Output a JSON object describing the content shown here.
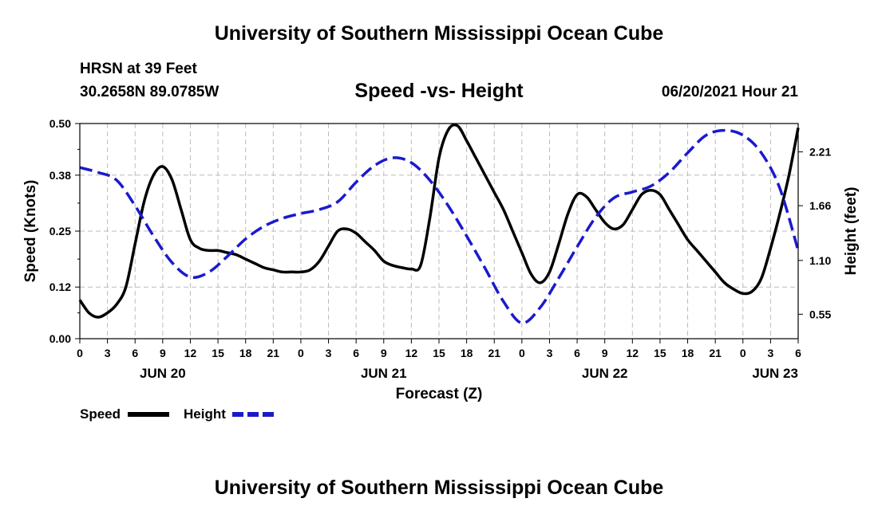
{
  "header": {
    "title": "University of Southern Mississippi Ocean Cube",
    "station": "HRSN at 39 Feet",
    "coordinates": "30.2658N  89.0785W",
    "subtitle": "Speed -vs- Height",
    "datetime": "06/20/2021 Hour 21"
  },
  "footer": {
    "title": "University of Southern Mississippi Ocean Cube"
  },
  "legend": {
    "speed_label": "Speed",
    "height_label": "Height",
    "position": "bottom-left"
  },
  "colors": {
    "speed": "#000000",
    "height": "#1a1acc",
    "grid": "#bbbbbb"
  },
  "chart_data": {
    "type": "line",
    "title": "Speed -vs- Height",
    "xlabel": "Forecast (Z)",
    "ylabel": "Speed (Knots)",
    "y2label": "Height (feet)",
    "xlim": [
      0,
      78
    ],
    "ylim": [
      0,
      0.5
    ],
    "y2lim": [
      0.3,
      2.5
    ],
    "grid": true,
    "x_ticks": [
      0,
      3,
      6,
      9,
      12,
      15,
      18,
      21,
      24,
      27,
      30,
      33,
      36,
      39,
      42,
      45,
      48,
      51,
      54,
      57,
      60,
      63,
      66,
      69,
      72,
      75,
      78
    ],
    "x_tick_labels": [
      "0",
      "3",
      "6",
      "9",
      "12",
      "15",
      "18",
      "21",
      "0",
      "3",
      "6",
      "9",
      "12",
      "15",
      "18",
      "21",
      "0",
      "3",
      "6",
      "9",
      "12",
      "15",
      "18",
      "21",
      "0",
      "3",
      "6"
    ],
    "date_labels": [
      {
        "hour": 9,
        "label": "JUN 20"
      },
      {
        "hour": 33,
        "label": "JUN 21"
      },
      {
        "hour": 57,
        "label": "JUN 22"
      },
      {
        "hour": 75.5,
        "label": "JUN 23"
      }
    ],
    "y_ticks": [
      0.0,
      0.12,
      0.25,
      0.38,
      0.5
    ],
    "y_tick_labels": [
      "0.00",
      "0.12",
      "0.25",
      "0.38",
      "0.50"
    ],
    "y2_ticks": [
      0.55,
      1.1,
      1.66,
      2.21
    ],
    "y2_tick_labels": [
      "0.55",
      "1.10",
      "1.66",
      "2.21"
    ],
    "series": [
      {
        "name": "Speed",
        "axis": "left",
        "x": [
          0,
          1,
          2,
          3,
          4,
          5,
          6,
          7,
          8,
          9,
          10,
          11,
          12,
          13,
          14,
          15,
          16,
          17,
          18,
          19,
          20,
          21,
          22,
          23,
          24,
          25,
          26,
          27,
          28,
          29,
          30,
          31,
          32,
          33,
          34,
          35,
          36,
          37,
          38,
          39,
          40,
          41,
          42,
          43,
          44,
          45,
          46,
          47,
          48,
          49,
          50,
          51,
          52,
          53,
          54,
          55,
          56,
          57,
          58,
          59,
          60,
          61,
          62,
          63,
          64,
          65,
          66,
          67,
          68,
          69,
          70,
          71,
          72,
          73,
          74,
          75,
          76,
          77,
          78
        ],
        "values": [
          0.09,
          0.06,
          0.05,
          0.06,
          0.08,
          0.12,
          0.22,
          0.32,
          0.38,
          0.4,
          0.37,
          0.3,
          0.23,
          0.21,
          0.205,
          0.205,
          0.2,
          0.195,
          0.185,
          0.175,
          0.165,
          0.16,
          0.155,
          0.155,
          0.155,
          0.16,
          0.18,
          0.215,
          0.25,
          0.255,
          0.245,
          0.225,
          0.205,
          0.18,
          0.17,
          0.165,
          0.162,
          0.17,
          0.28,
          0.42,
          0.485,
          0.495,
          0.46,
          0.42,
          0.38,
          0.34,
          0.3,
          0.25,
          0.2,
          0.15,
          0.13,
          0.155,
          0.22,
          0.29,
          0.335,
          0.33,
          0.3,
          0.27,
          0.255,
          0.265,
          0.3,
          0.335,
          0.345,
          0.335,
          0.3,
          0.265,
          0.23,
          0.205,
          0.18,
          0.155,
          0.13,
          0.115,
          0.105,
          0.11,
          0.14,
          0.21,
          0.29,
          0.38,
          0.49
        ]
      },
      {
        "name": "Height",
        "axis": "right",
        "x": [
          0,
          2,
          4,
          6,
          8,
          10,
          12,
          14,
          16,
          18,
          20,
          22,
          24,
          26,
          28,
          30,
          32,
          34,
          36,
          38,
          40,
          42,
          44,
          46,
          48,
          50,
          52,
          54,
          56,
          58,
          60,
          62,
          64,
          66,
          68,
          70,
          72,
          74,
          76,
          78
        ],
        "values": [
          2.05,
          2.0,
          1.92,
          1.66,
          1.35,
          1.08,
          0.93,
          0.98,
          1.14,
          1.32,
          1.45,
          1.53,
          1.58,
          1.62,
          1.7,
          1.9,
          2.07,
          2.15,
          2.1,
          1.92,
          1.66,
          1.35,
          1.02,
          0.68,
          0.46,
          0.62,
          0.92,
          1.24,
          1.54,
          1.74,
          1.8,
          1.86,
          2.0,
          2.2,
          2.38,
          2.43,
          2.38,
          2.2,
          1.84,
          1.2
        ]
      }
    ]
  }
}
